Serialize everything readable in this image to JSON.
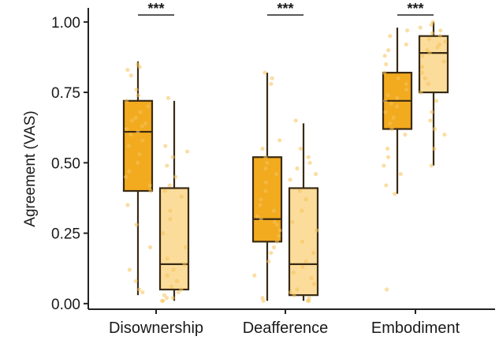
{
  "chart_data": {
    "type": "box",
    "title": "",
    "xlabel": "",
    "ylabel": "Agreement (VAS)",
    "ylim": [
      -0.02,
      1.05
    ],
    "yticks": [
      {
        "value": 0.0,
        "label": "0.00"
      },
      {
        "value": 0.25,
        "label": "0.25"
      },
      {
        "value": 0.5,
        "label": "0.50"
      },
      {
        "value": 0.75,
        "label": "0.75"
      },
      {
        "value": 1.0,
        "label": "1.00"
      }
    ],
    "grid": false,
    "legend": "none",
    "colors": {
      "condition_a": "#f2aa1f",
      "condition_b": "#fbdc9a",
      "outline": "#3a2a14"
    },
    "categories": [
      "Disownership",
      "Deafference",
      "Embodiment"
    ],
    "significance": [
      "***",
      "***",
      "***"
    ],
    "groups": [
      {
        "category": "Disownership",
        "boxes": [
          {
            "condition": "a",
            "min": 0.03,
            "q1": 0.4,
            "median": 0.61,
            "q3": 0.72,
            "max": 0.86,
            "points": [
              0.85,
              0.84,
              0.83,
              0.81,
              0.76,
              0.74,
              0.72,
              0.7,
              0.68,
              0.66,
              0.65,
              0.64,
              0.63,
              0.62,
              0.61,
              0.6,
              0.58,
              0.56,
              0.53,
              0.5,
              0.47,
              0.45,
              0.42,
              0.4,
              0.35,
              0.28,
              0.2,
              0.12,
              0.08,
              0.05,
              0.04
            ]
          },
          {
            "condition": "b",
            "min": 0.01,
            "q1": 0.05,
            "median": 0.14,
            "q3": 0.41,
            "max": 0.72,
            "points": [
              0.73,
              0.56,
              0.54,
              0.52,
              0.49,
              0.45,
              0.42,
              0.4,
              0.38,
              0.33,
              0.3,
              0.25,
              0.2,
              0.16,
              0.14,
              0.12,
              0.1,
              0.08,
              0.06,
              0.05,
              0.04,
              0.03,
              0.02,
              0.02,
              0.01,
              0.01
            ]
          }
        ]
      },
      {
        "category": "Deafference",
        "boxes": [
          {
            "condition": "a",
            "min": 0.01,
            "q1": 0.22,
            "median": 0.3,
            "q3": 0.52,
            "max": 0.82,
            "points": [
              0.82,
              0.8,
              0.78,
              0.58,
              0.55,
              0.52,
              0.5,
              0.48,
              0.46,
              0.43,
              0.4,
              0.37,
              0.35,
              0.33,
              0.31,
              0.3,
              0.29,
              0.28,
              0.26,
              0.24,
              0.22,
              0.2,
              0.18,
              0.15,
              0.1,
              0.02,
              0.01
            ]
          },
          {
            "condition": "b",
            "min": 0.01,
            "q1": 0.03,
            "median": 0.14,
            "q3": 0.41,
            "max": 0.64,
            "points": [
              0.65,
              0.55,
              0.52,
              0.5,
              0.48,
              0.46,
              0.44,
              0.4,
              0.37,
              0.33,
              0.29,
              0.26,
              0.22,
              0.18,
              0.15,
              0.13,
              0.11,
              0.09,
              0.07,
              0.05,
              0.04,
              0.03,
              0.02,
              0.01,
              0.01
            ]
          }
        ]
      },
      {
        "category": "Embodiment",
        "boxes": [
          {
            "condition": "a",
            "min": 0.39,
            "q1": 0.62,
            "median": 0.72,
            "q3": 0.82,
            "max": 0.98,
            "points": [
              0.97,
              0.95,
              0.92,
              0.9,
              0.88,
              0.85,
              0.82,
              0.8,
              0.78,
              0.76,
              0.74,
              0.73,
              0.72,
              0.71,
              0.7,
              0.68,
              0.66,
              0.64,
              0.62,
              0.6,
              0.55,
              0.52,
              0.49,
              0.46,
              0.42,
              0.39,
              0.05
            ]
          },
          {
            "condition": "b",
            "min": 0.49,
            "q1": 0.75,
            "median": 0.89,
            "q3": 0.95,
            "max": 1.0,
            "points": [
              1.0,
              0.99,
              0.98,
              0.97,
              0.96,
              0.95,
              0.94,
              0.93,
              0.92,
              0.91,
              0.9,
              0.89,
              0.88,
              0.86,
              0.84,
              0.82,
              0.8,
              0.78,
              0.75,
              0.72,
              0.68,
              0.65,
              0.62,
              0.6,
              0.55,
              0.49
            ]
          }
        ]
      }
    ]
  }
}
